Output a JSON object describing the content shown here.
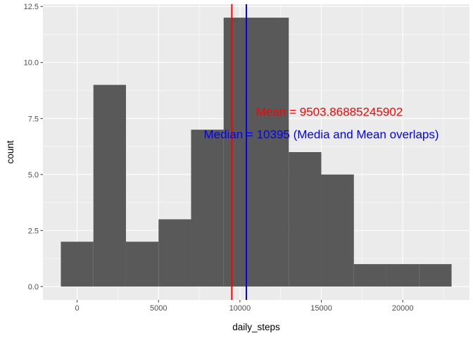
{
  "chart_data": {
    "type": "bar",
    "title": "",
    "xlabel": "daily_steps",
    "ylabel": "count",
    "bins": [
      {
        "x0": -1000,
        "x1": 1000,
        "count": 2
      },
      {
        "x0": 1000,
        "x1": 3000,
        "count": 9
      },
      {
        "x0": 3000,
        "x1": 5000,
        "count": 2
      },
      {
        "x0": 5000,
        "x1": 7000,
        "count": 3
      },
      {
        "x0": 7000,
        "x1": 9000,
        "count": 7
      },
      {
        "x0": 9000,
        "x1": 11000,
        "count": 12
      },
      {
        "x0": 11000,
        "x1": 13000,
        "count": 12
      },
      {
        "x0": 13000,
        "x1": 15000,
        "count": 6
      },
      {
        "x0": 15000,
        "x1": 17000,
        "count": 5
      },
      {
        "x0": 17000,
        "x1": 19000,
        "count": 1
      },
      {
        "x0": 19000,
        "x1": 21000,
        "count": 1
      },
      {
        "x0": 21000,
        "x1": 23000,
        "count": 1
      }
    ],
    "xlim": [
      -2100,
      24100
    ],
    "ylim": [
      -0.6,
      12.6
    ],
    "x_ticks": [
      0,
      5000,
      10000,
      15000,
      20000
    ],
    "x_tick_labels": [
      "0",
      "5000",
      "10000",
      "15000",
      "20000"
    ],
    "y_ticks": [
      0,
      2.5,
      5,
      7.5,
      10,
      12.5
    ],
    "y_tick_labels": [
      "0.0",
      "2.5",
      "5.0",
      "7.5",
      "10.0",
      "12.5"
    ],
    "grid": true,
    "bar_color": "#595959",
    "panel_background": "#ebebeb",
    "vlines": [
      {
        "x": 9503.86885245902,
        "color": "#ff0000"
      },
      {
        "x": 10395,
        "color": "#0000ff"
      }
    ],
    "annotations": [
      {
        "text": "Mean = 9503.86885245902",
        "x": 15500,
        "y": 7.8,
        "color": "#ff0000"
      },
      {
        "text": "Median  = 10395 (Media and Mean overlaps)",
        "x": 15000,
        "y": 6.8,
        "color": "#0000ff"
      }
    ]
  }
}
